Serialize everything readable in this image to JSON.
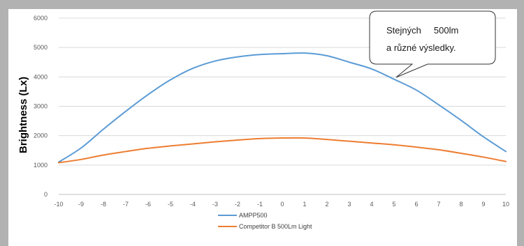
{
  "chart_data": {
    "type": "line",
    "title": "",
    "xlabel": "",
    "ylabel": "Brightness (Lx)",
    "x": [
      -10,
      -9,
      -8,
      -7,
      -6,
      -5,
      -4,
      -3,
      -2,
      -1,
      0,
      1,
      2,
      3,
      4,
      5,
      6,
      7,
      8,
      9,
      10
    ],
    "xlim": [
      -10,
      10
    ],
    "ylim": [
      0,
      6000
    ],
    "yticks": [
      0,
      1000,
      2000,
      3000,
      4000,
      5000,
      6000
    ],
    "grid": true,
    "legend_position": "bottom",
    "series": [
      {
        "name": "AMPP500",
        "color": "#5b9bd5",
        "values": [
          1100,
          1580,
          2220,
          2830,
          3400,
          3900,
          4290,
          4540,
          4680,
          4760,
          4790,
          4810,
          4720,
          4500,
          4270,
          3920,
          3550,
          3050,
          2520,
          1960,
          1460
        ]
      },
      {
        "name": "Competitor B 500Lm Light",
        "color": "#ed7d31",
        "values": [
          1080,
          1190,
          1340,
          1460,
          1570,
          1650,
          1720,
          1790,
          1850,
          1900,
          1920,
          1920,
          1870,
          1810,
          1750,
          1690,
          1610,
          1520,
          1400,
          1270,
          1120
        ]
      }
    ],
    "annotation": {
      "lines": [
        "Stejných     500lm",
        "a různé výsledky."
      ]
    }
  }
}
